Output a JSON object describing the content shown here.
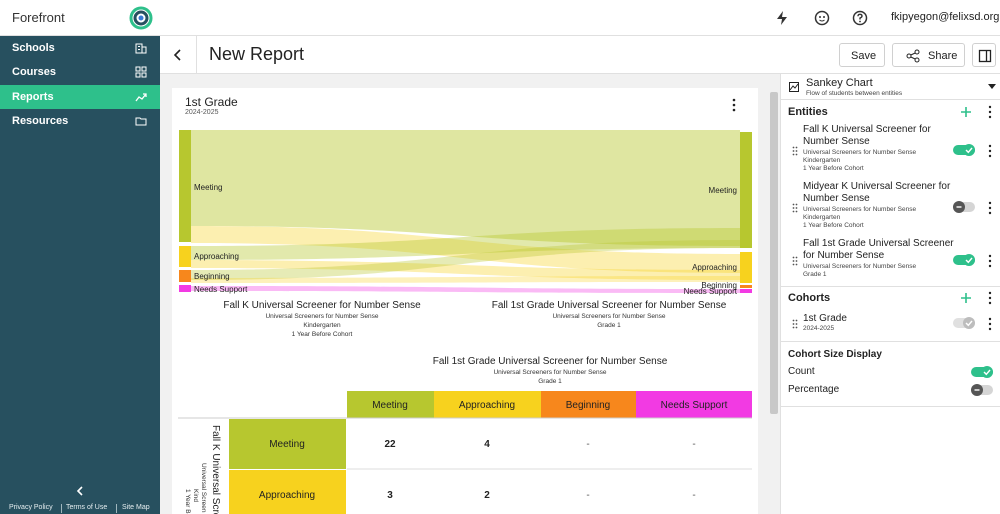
{
  "app": {
    "brand": "Forefront",
    "user_email": "fkipyegon@felixsd.org"
  },
  "sidebar": {
    "items": [
      {
        "label": "Schools",
        "icon": "building-icon"
      },
      {
        "label": "Courses",
        "icon": "grid-icon"
      },
      {
        "label": "Reports",
        "icon": "trending-icon",
        "active": true
      },
      {
        "label": "Resources",
        "icon": "folder-icon"
      }
    ],
    "footer": [
      "Privacy Policy",
      "Terms of Use",
      "Site Map"
    ]
  },
  "report": {
    "title": "New Report",
    "save_label": "Save",
    "share_label": "Share"
  },
  "card": {
    "title": "1st Grade",
    "subtitle": "2024-2025"
  },
  "sankey": {
    "left_labels": [
      "Meeting",
      "Approaching",
      "Beginning",
      "Needs Support"
    ],
    "right_labels": [
      "Meeting",
      "Approaching",
      "Beginning",
      "Needs Support"
    ],
    "left_axis": {
      "title": "Fall K Universal Screener for Number Sense",
      "l1": "Universal Screeners for Number Sense",
      "l2": "Kindergarten",
      "l3": "1 Year Before Cohort"
    },
    "right_axis": {
      "title": "Fall 1st Grade Universal Screener for Number Sense",
      "l1": "Universal Screeners for Number Sense",
      "l2": "Grade 1"
    }
  },
  "crosstab": {
    "title": "Fall 1st Grade Universal Screener for Number Sense",
    "l1": "Universal Screeners for Number Sense",
    "l2": "Grade 1",
    "columns": [
      "Meeting",
      "Approaching",
      "Beginning",
      "Needs Support"
    ],
    "row_axis": {
      "title": "Fall K Universal Scre",
      "l1": "Universal Screen",
      "l2": "Kind",
      "l3": "1 Year B"
    },
    "rows": [
      {
        "label": "Meeting",
        "values": [
          "22",
          "4",
          "-",
          "-"
        ]
      },
      {
        "label": "Approaching",
        "values": [
          "3",
          "2",
          "-",
          "-"
        ]
      }
    ]
  },
  "panel": {
    "chart_type": "Sankey Chart",
    "chart_type_desc": "Flow of students between entities",
    "entities_header": "Entities",
    "entities": [
      {
        "title1": "Fall K Universal Screener for",
        "title2": "Number Sense",
        "m1": "Universal Screeners for Number Sense",
        "m2": "Kindergarten",
        "m3": "1 Year Before Cohort",
        "on": true
      },
      {
        "title1": "Midyear K Universal Screener for",
        "title2": "Number Sense",
        "m1": "Universal Screeners for Number Sense",
        "m2": "Kindergarten",
        "m3": "1 Year Before Cohort",
        "on": false
      },
      {
        "title1": "Fall 1st Grade Universal Screener",
        "title2": "for Number Sense",
        "m1": "Universal Screeners for Number Sense",
        "m2": "Grade 1",
        "on": true
      }
    ],
    "cohorts_header": "Cohorts",
    "cohort": {
      "name": "1st Grade",
      "year": "2024-2025"
    },
    "size_header": "Cohort Size Display",
    "count_label": "Count",
    "percentage_label": "Percentage",
    "count_on": true,
    "percentage_on": false
  },
  "colors": {
    "accent": "#2ec08b",
    "sidebar": "#27505f",
    "meeting": "#b7c72f",
    "approaching": "#f7d21e",
    "beginning": "#f7871c",
    "needs_support": "#f23ae3"
  }
}
